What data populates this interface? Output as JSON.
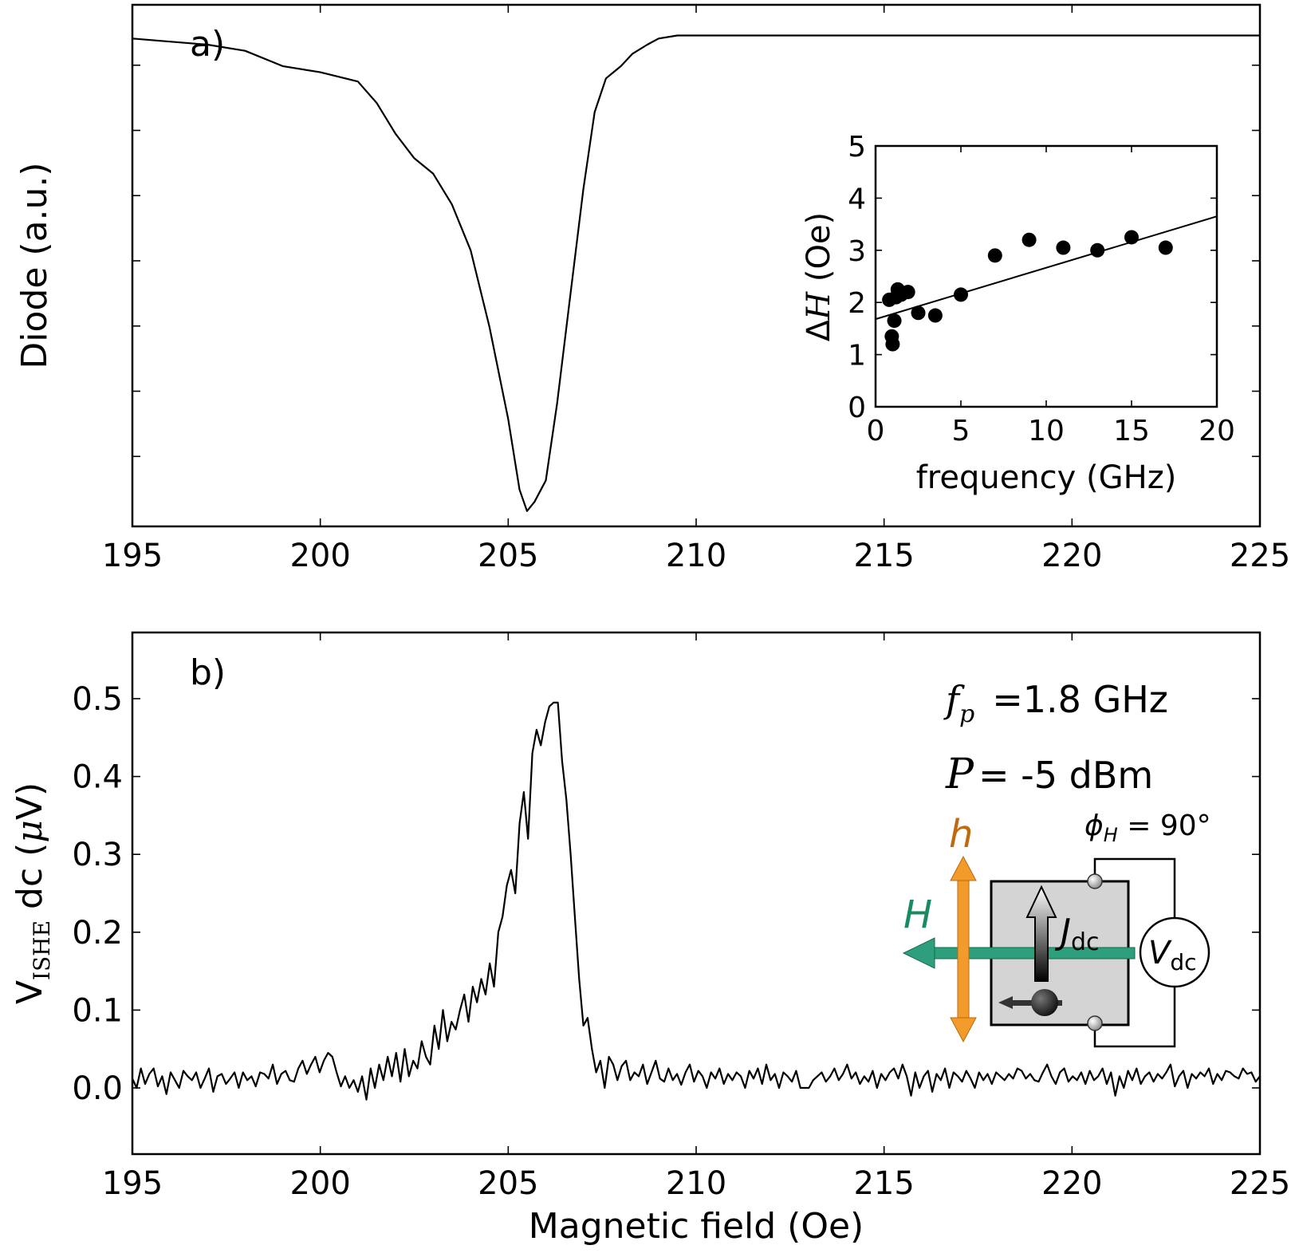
{
  "chart_data": [
    {
      "id": "a",
      "type": "line",
      "panel_label": "a)",
      "xlabel": "",
      "ylabel": "Diode (a.u.)",
      "xlim": [
        195,
        225
      ],
      "ylim": [
        -1.6,
        0.1
      ],
      "xticks": [
        "195",
        "200",
        "205",
        "210",
        "215",
        "220",
        "225"
      ],
      "yticks": [],
      "series": [
        {
          "name": "diode",
          "x": [
            195.0,
            196.0,
            197.0,
            198.0,
            199.0,
            200.0,
            201.0,
            201.5,
            202.0,
            202.5,
            203.0,
            203.5,
            204.0,
            204.5,
            205.0,
            205.3,
            205.5,
            205.7,
            206.0,
            206.3,
            206.6,
            207.0,
            207.3,
            207.6,
            208.0,
            208.3,
            208.7,
            209.0,
            209.5,
            210.0,
            212.0,
            215.0,
            218.0,
            220.0,
            222.0,
            225.0
          ],
          "y": [
            -0.01,
            -0.02,
            -0.03,
            -0.05,
            -0.1,
            -0.12,
            -0.15,
            -0.22,
            -0.32,
            -0.4,
            -0.45,
            -0.55,
            -0.7,
            -0.95,
            -1.25,
            -1.48,
            -1.55,
            -1.52,
            -1.45,
            -1.2,
            -0.9,
            -0.5,
            -0.25,
            -0.14,
            -0.1,
            -0.06,
            -0.03,
            -0.01,
            0.0,
            0.0,
            0.0,
            0.0,
            0.0,
            0.0,
            0.0,
            0.0
          ]
        }
      ]
    },
    {
      "id": "inset",
      "type": "scatter",
      "xlabel": "frequency (GHz)",
      "ylabel_prefix": "Δ",
      "ylabel_var": "H",
      "ylabel_suffix": " (Oe)",
      "xlim": [
        0,
        20
      ],
      "ylim": [
        0,
        5
      ],
      "xticks": [
        "0",
        "5",
        "10",
        "15",
        "20"
      ],
      "yticks": [
        "0",
        "1",
        "2",
        "3",
        "4",
        "5"
      ],
      "points": {
        "x": [
          0.8,
          0.95,
          1.0,
          1.1,
          1.2,
          1.3,
          1.5,
          1.9,
          2.5,
          3.5,
          5.0,
          7.0,
          9.0,
          11.0,
          13.0,
          15.0,
          17.0
        ],
        "y": [
          2.05,
          1.35,
          1.2,
          1.65,
          2.1,
          2.25,
          2.15,
          2.2,
          1.8,
          1.75,
          2.15,
          2.9,
          3.2,
          3.05,
          3.0,
          3.25,
          3.05
        ]
      },
      "fit": {
        "x": [
          0,
          20
        ],
        "y": [
          1.68,
          3.65
        ]
      }
    },
    {
      "id": "b",
      "type": "line",
      "panel_label": "b)",
      "xlabel": "Magnetic field (Oe)",
      "ylabel_main": "V",
      "ylabel_sub": "ISHE",
      "ylabel_rest": " dc (",
      "ylabel_mu": "μ",
      "ylabel_end": "V)",
      "xlim": [
        195,
        225
      ],
      "ylim": [
        -0.085,
        0.585
      ],
      "xticks": [
        "195",
        "200",
        "205",
        "210",
        "215",
        "220",
        "225"
      ],
      "yticks": [
        "0.0",
        "0.1",
        "0.2",
        "0.3",
        "0.4",
        "0.5"
      ],
      "series": [
        {
          "name": "V_ISHE",
          "x_start": 195.0,
          "x_end": 225.0,
          "y": [
            0.012,
            0.0,
            0.025,
            0.005,
            0.018,
            0.025,
            0.002,
            0.015,
            -0.008,
            0.02,
            0.01,
            0.0,
            0.022,
            0.015,
            0.01,
            0.02,
            0.0,
            0.012,
            0.025,
            -0.005,
            0.015,
            0.018,
            0.005,
            0.012,
            0.02,
            0.0,
            0.02,
            0.01,
            0.015,
            0.002,
            0.02,
            0.018,
            0.012,
            0.03,
            0.005,
            0.018,
            0.022,
            0.01,
            0.008,
            0.025,
            0.035,
            0.018,
            0.03,
            0.04,
            0.02,
            0.035,
            0.045,
            0.04,
            0.02,
            0.002,
            0.015,
            0.0,
            0.01,
            -0.005,
            0.015,
            -0.015,
            0.025,
            0.0,
            0.03,
            0.01,
            0.04,
            0.015,
            0.045,
            0.008,
            0.05,
            0.015,
            0.035,
            0.025,
            0.06,
            0.04,
            0.03,
            0.08,
            0.05,
            0.1,
            0.06,
            0.085,
            0.075,
            0.1,
            0.12,
            0.085,
            0.13,
            0.11,
            0.14,
            0.12,
            0.16,
            0.13,
            0.2,
            0.22,
            0.26,
            0.28,
            0.25,
            0.34,
            0.38,
            0.32,
            0.43,
            0.46,
            0.44,
            0.47,
            0.49,
            0.495,
            0.495,
            0.42,
            0.37,
            0.3,
            0.22,
            0.14,
            0.08,
            0.09,
            0.05,
            0.02,
            0.035,
            0.0,
            0.04,
            0.03,
            0.01,
            0.028,
            0.035,
            0.01,
            0.02,
            0.015,
            0.03,
            0.005,
            0.02,
            0.035,
            0.012,
            0.008,
            0.025,
            0.01,
            0.018,
            0.004,
            0.02,
            0.03,
            0.008,
            0.022,
            0.015,
            0.0,
            0.02,
            0.012,
            0.025,
            0.005,
            0.018,
            0.01,
            0.02,
            0.015,
            0.0,
            0.022,
            0.012,
            0.025,
            0.005,
            0.03,
            0.01,
            0.018,
            0.0,
            0.02,
            0.015,
            0.008,
            0.022,
            0.0,
            0.0,
            0.0,
            0.01,
            0.015,
            0.02,
            0.008,
            0.015,
            0.025,
            0.01,
            0.018,
            0.03,
            0.012,
            0.02,
            0.005,
            0.015,
            0.008,
            0.022,
            0.0,
            0.018,
            0.01,
            0.02,
            0.025,
            0.012,
            0.03,
            0.015,
            -0.01,
            0.02,
            0.0,
            0.015,
            0.022,
            -0.005,
            0.018,
            0.01,
            0.025,
            0.0,
            0.02,
            0.015,
            0.008,
            0.022,
            0.012,
            0.0,
            0.02,
            0.01,
            0.018,
            0.005,
            0.02,
            0.015,
            0.01,
            0.018,
            0.012,
            0.025,
            0.022,
            0.012,
            0.018,
            0.01,
            0.008,
            0.02,
            0.03,
            0.015,
            0.005,
            0.02,
            0.025,
            0.008,
            0.015,
            0.01,
            0.02,
            0.005,
            0.022,
            0.01,
            0.015,
            0.025,
            0.005,
            0.02,
            -0.01,
            0.015,
            0.0,
            0.022,
            0.01,
            0.025,
            0.005,
            0.015,
            0.02,
            0.008,
            0.018,
            0.012,
            0.02,
            0.03,
            0.002,
            0.015,
            0.022,
            0.0,
            0.018,
            0.012,
            0.02,
            0.015,
            0.025,
            0.005,
            0.018,
            0.01,
            0.022,
            0.02,
            0.015,
            0.012,
            0.025,
            0.018,
            0.02,
            0.008,
            0.015
          ]
        }
      ]
    }
  ],
  "annotations": {
    "freq_var": "f",
    "freq_sub": "p",
    "freq_text": "=1.8 GHz",
    "power_var": "P",
    "power_text": "= -5 dBm"
  },
  "schematic": {
    "h_label": "h",
    "H_label": "H",
    "phi_sym": "ϕ",
    "phi_sub": "H",
    "phi_val": " = 90°",
    "J_label": "J",
    "J_sub": "dc",
    "V_label": "V",
    "V_sub": "dc",
    "colors": {
      "h": "#c06a10",
      "H": "#1a8a60",
      "h_arrow": "#f39b2a",
      "H_arrow": "#2e9f7d",
      "sample": "#d4d4d4"
    }
  }
}
